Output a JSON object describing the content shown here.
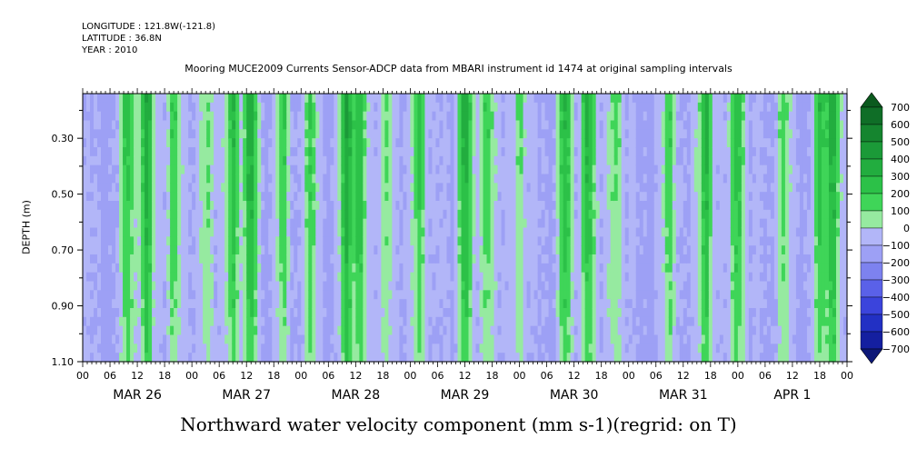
{
  "header": {
    "longitude": "LONGITUDE : 121.8W(-121.8)",
    "latitude": "LATITUDE : 36.8N",
    "year": "YEAR : 2010"
  },
  "chart_data": {
    "type": "heatmap",
    "title": "Mooring MUCE2009 Currents Sensor-ADCP data from MBARI instrument id 1474 at original sampling intervals",
    "xlabel": "Northward water velocity component (mm s-1)(regrid: on T)",
    "ylabel": "DEPTH (m)",
    "ylim": [
      1.1,
      0.14
    ],
    "y_ticks": [
      "0.30",
      "0.50",
      "0.70",
      "0.90",
      "1.10"
    ],
    "y_tick_values": [
      0.3,
      0.5,
      0.7,
      0.9,
      1.1
    ],
    "x_hour_labels": [
      "00",
      "06",
      "12",
      "18",
      "00",
      "06",
      "12",
      "18",
      "00",
      "06",
      "12",
      "18",
      "00",
      "06",
      "12",
      "18",
      "00",
      "06",
      "12",
      "18",
      "00",
      "06",
      "12",
      "18",
      "00",
      "06",
      "12",
      "18",
      "00"
    ],
    "x_day_labels": [
      "MAR 26",
      "MAR 27",
      "MAR 28",
      "MAR 29",
      "MAR 30",
      "MAR 31",
      "APR  1"
    ],
    "colorbar": {
      "levels": [
        "700",
        "600",
        "500",
        "400",
        "300",
        "200",
        "100",
        "0",
        "−100",
        "−200",
        "−300",
        "−400",
        "−500",
        "−600",
        "−700"
      ],
      "colors": [
        "#0b5a1e",
        "#0f6e27",
        "#15852f",
        "#1b9a38",
        "#22ad3f",
        "#2cc148",
        "#3fd558",
        "#96eaa0",
        "#b2b6f8",
        "#9da0f5",
        "#7d82ef",
        "#5a61e8",
        "#3b44dc",
        "#2230c4",
        "#141fa0",
        "#0d1878"
      ]
    },
    "green_bands_hours": [
      10,
      14,
      20,
      27,
      33,
      37,
      44,
      50,
      58,
      61,
      67,
      74,
      84,
      89,
      96,
      106,
      111,
      117,
      129,
      137,
      144,
      154,
      162,
      165
    ],
    "series_description": "Northward velocity (mm s-1) vs time (Mar 26 00Z to Apr 2 00Z 2010) and depth (0.14 to 1.10 m); values range roughly -300 to 500"
  }
}
